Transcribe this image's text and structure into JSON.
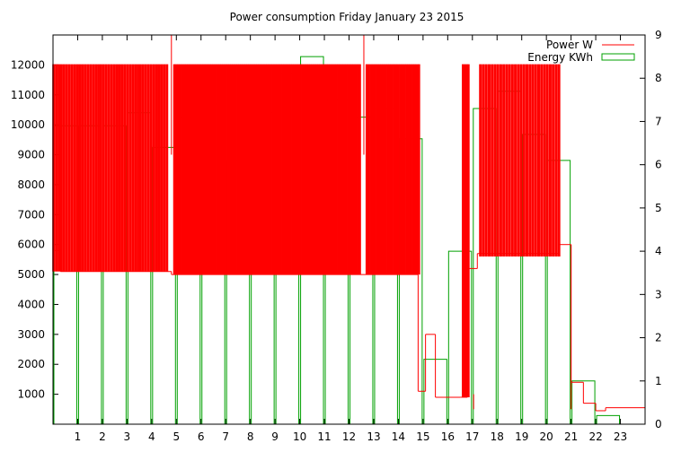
{
  "chart_data": {
    "type": "line",
    "title": "Power consumption Friday January 23 2015",
    "x_ticks": [
      "1",
      "2",
      "3",
      "4",
      "5",
      "6",
      "7",
      "8",
      "9",
      "10",
      "11",
      "12",
      "13",
      "14",
      "15",
      "16",
      "17",
      "18",
      "19",
      "20",
      "21",
      "22",
      "23"
    ],
    "xlim": [
      0,
      24
    ],
    "ylim_left": [
      0,
      13000
    ],
    "ylim_right": [
      0,
      9
    ],
    "y_ticks_left": [
      "1000",
      "2000",
      "3000",
      "4000",
      "5000",
      "6000",
      "7000",
      "8000",
      "9000",
      "10000",
      "11000",
      "12000"
    ],
    "y_ticks_right": [
      "0",
      "1",
      "2",
      "3",
      "4",
      "5",
      "6",
      "7",
      "8",
      "9"
    ],
    "legend_position": "top-right",
    "series": [
      {
        "name": "Power W",
        "color": "#ff0000",
        "axis": "left",
        "style": "steps",
        "baseline_segments": [
          {
            "x0": 0.0,
            "x1": 0.3,
            "y": 5800
          },
          {
            "x0": 0.3,
            "x1": 4.8,
            "y": 5100
          },
          {
            "x0": 4.8,
            "x1": 14.8,
            "y": 5000
          },
          {
            "x0": 14.8,
            "x1": 15.1,
            "y": 1100
          },
          {
            "x0": 15.1,
            "x1": 15.5,
            "y": 3000
          },
          {
            "x0": 15.5,
            "x1": 16.5,
            "y": 900
          },
          {
            "x0": 16.5,
            "x1": 16.8,
            "y": 900
          },
          {
            "x0": 16.8,
            "x1": 17.2,
            "y": 5200
          },
          {
            "x0": 17.2,
            "x1": 20.5,
            "y": 5700
          },
          {
            "x0": 20.5,
            "x1": 21.0,
            "y": 6000
          },
          {
            "x0": 21.0,
            "x1": 21.5,
            "y": 1400
          },
          {
            "x0": 21.5,
            "x1": 22.0,
            "y": 700
          },
          {
            "x0": 22.0,
            "x1": 22.4,
            "y": 450
          },
          {
            "x0": 22.4,
            "x1": 24.0,
            "y": 550
          }
        ],
        "spike_bands": [
          {
            "x0": 0.0,
            "x1": 4.7,
            "count": 44,
            "high": 12000,
            "low": 5100
          },
          {
            "x0": 4.9,
            "x1": 12.5,
            "count": 95,
            "high": 12000,
            "low": 5000
          },
          {
            "x0": 12.7,
            "x1": 14.9,
            "count": 26,
            "high": 12000,
            "low": 5000
          },
          {
            "x0": 16.6,
            "x1": 16.9,
            "count": 4,
            "high": 12000,
            "low": 900
          },
          {
            "x0": 17.3,
            "x1": 20.6,
            "count": 28,
            "high": 12000,
            "low": 5600
          }
        ],
        "peaks": [
          {
            "x": 4.8,
            "y": 13000
          },
          {
            "x": 12.6,
            "y": 13000
          },
          {
            "x": 17.05,
            "y": 1000
          },
          {
            "x": 21.0,
            "y": 6000
          }
        ]
      },
      {
        "name": "Energy KWh",
        "color": "#00a000",
        "axis": "right",
        "style": "impulse-steps",
        "x": [
          0,
          1,
          2,
          3,
          4,
          5,
          6,
          7,
          8,
          9,
          10,
          11,
          12,
          13,
          14,
          15,
          16,
          17,
          18,
          19,
          20,
          21,
          22
        ],
        "values": [
          6.9,
          6.9,
          6.9,
          7.2,
          6.4,
          7.1,
          7.4,
          6.1,
          7.2,
          8.1,
          8.5,
          7.5,
          7.1,
          7.3,
          6.6,
          1.5,
          4.0,
          7.3,
          7.7,
          6.7,
          6.1,
          1.0,
          0.2
        ]
      }
    ]
  }
}
